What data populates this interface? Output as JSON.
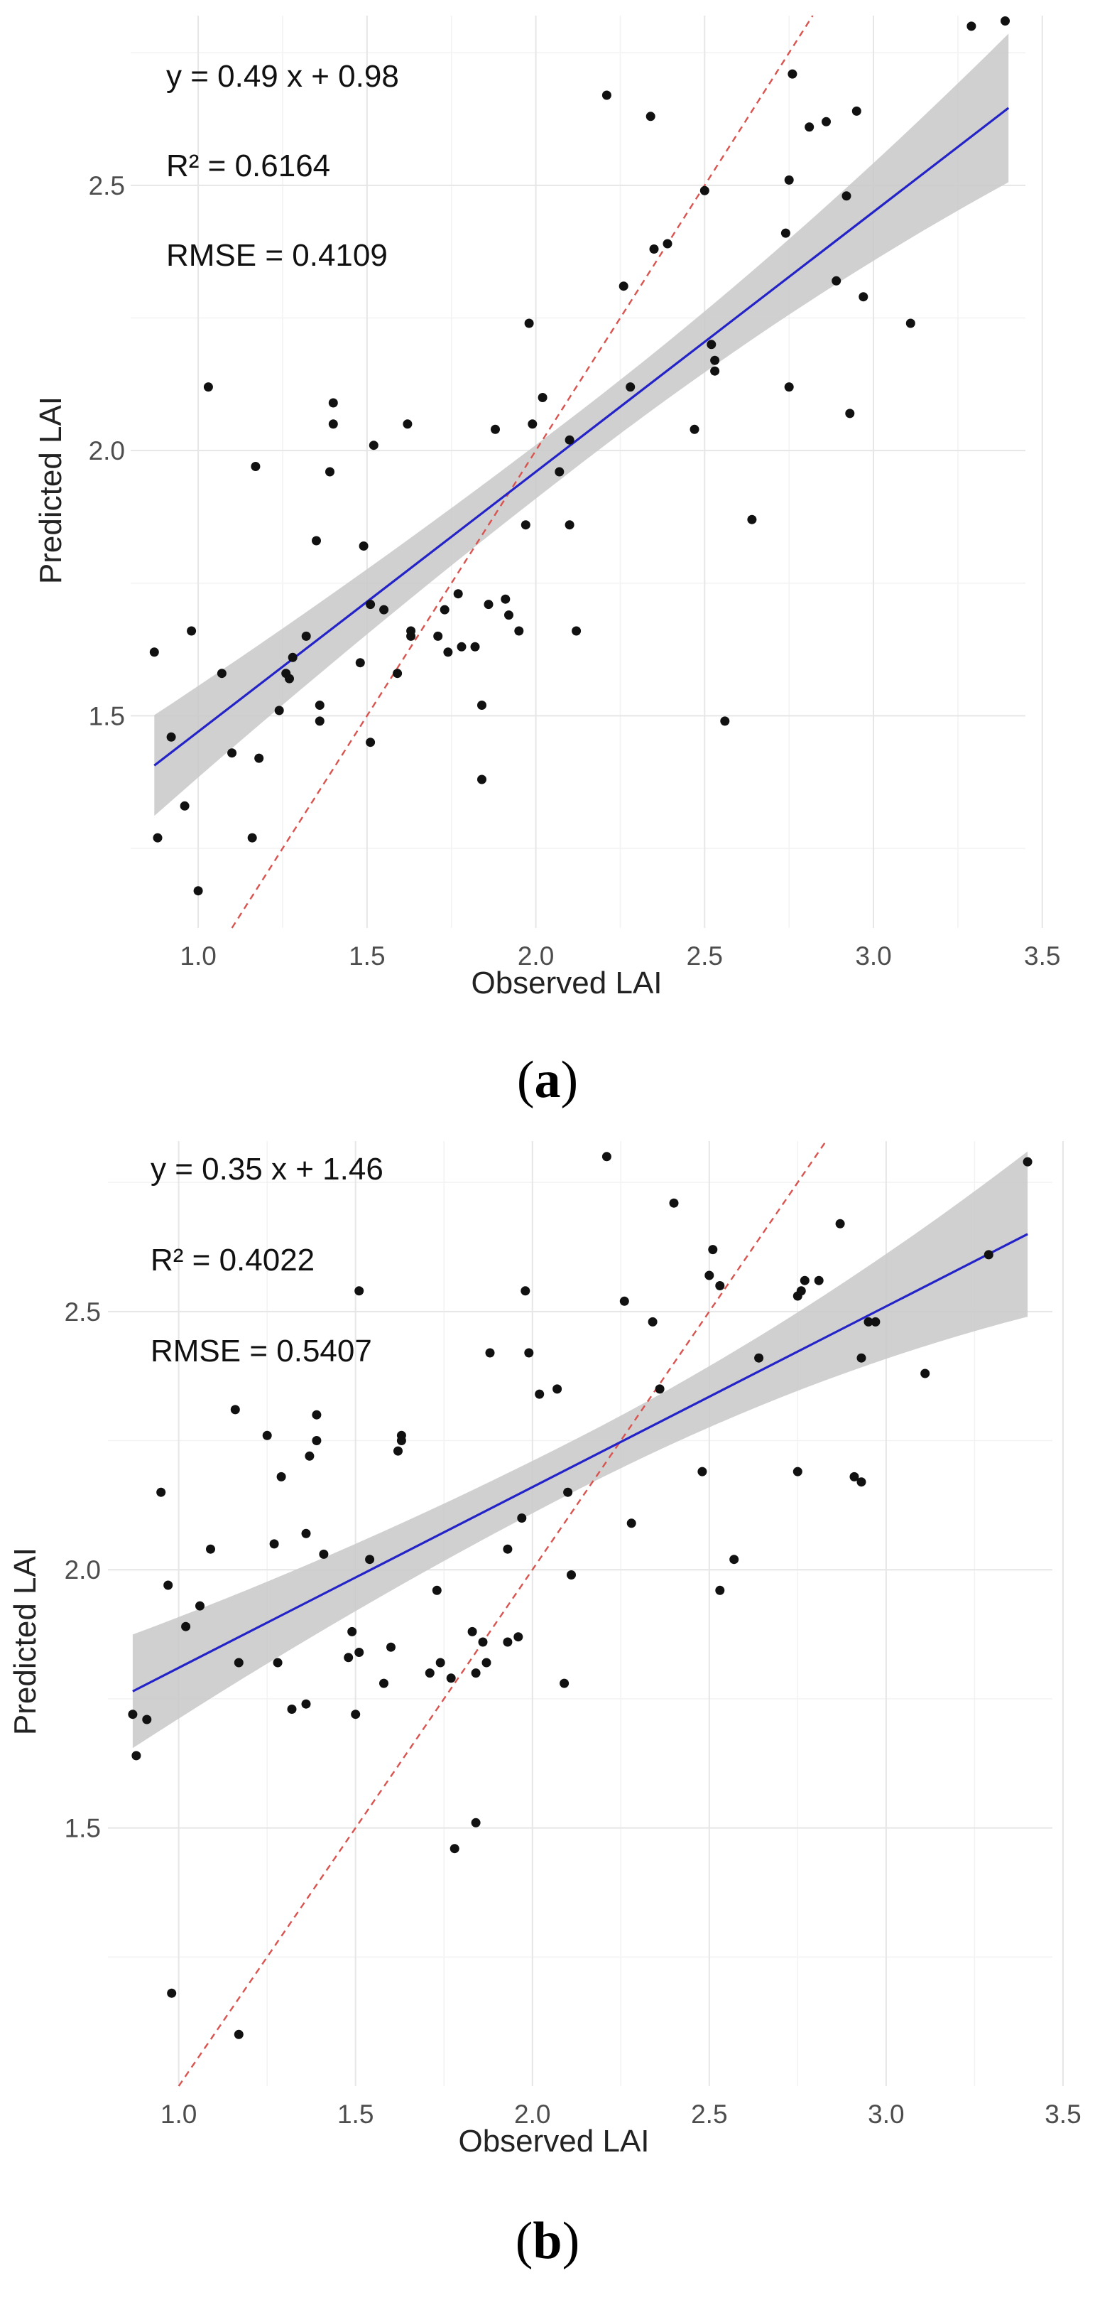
{
  "chart_data": [
    {
      "panel_label": "a",
      "type": "scatter",
      "xlabel": "Observed LAI",
      "ylabel": "Predicted LAI",
      "xlim": [
        0.8,
        3.45
      ],
      "ylim": [
        1.1,
        2.82
      ],
      "x_ticks": [
        "1.0",
        "1.5",
        "2.0",
        "2.5",
        "3.0",
        "3.5"
      ],
      "y_ticks": [
        "1.5",
        "2.0",
        "2.5"
      ],
      "annotations": {
        "equation": "y = 0.49 x + 0.98",
        "r2": "R² = 0.6164",
        "rmse": "RMSE = 0.4109"
      },
      "fit": {
        "slope": 0.49,
        "intercept": 0.98,
        "x_range": [
          0.87,
          3.4
        ],
        "band_halfwidth": [
          0.095,
          0.05,
          0.14
        ]
      },
      "identity_line": true,
      "colors": {
        "points": "#111111",
        "fit": "#2323c8",
        "identity": "#d9534f",
        "band": "#c8c8c8"
      },
      "points": [
        [
          0.87,
          1.62
        ],
        [
          0.88,
          1.27
        ],
        [
          0.92,
          1.46
        ],
        [
          0.96,
          1.33
        ],
        [
          0.98,
          1.66
        ],
        [
          1.0,
          1.17
        ],
        [
          1.03,
          2.12
        ],
        [
          1.07,
          1.58
        ],
        [
          1.1,
          1.43
        ],
        [
          1.16,
          1.27
        ],
        [
          1.17,
          1.97
        ],
        [
          1.18,
          1.42
        ],
        [
          1.24,
          1.51
        ],
        [
          1.26,
          1.58
        ],
        [
          1.27,
          1.57
        ],
        [
          1.28,
          1.61
        ],
        [
          1.32,
          1.65
        ],
        [
          1.35,
          1.83
        ],
        [
          1.36,
          1.52
        ],
        [
          1.36,
          1.49
        ],
        [
          1.39,
          1.96
        ],
        [
          1.4,
          2.05
        ],
        [
          1.4,
          2.09
        ],
        [
          1.48,
          1.6
        ],
        [
          1.49,
          1.82
        ],
        [
          1.51,
          1.71
        ],
        [
          1.51,
          1.45
        ],
        [
          1.52,
          2.01
        ],
        [
          1.55,
          1.7
        ],
        [
          1.59,
          1.58
        ],
        [
          1.62,
          2.05
        ],
        [
          1.63,
          1.66
        ],
        [
          1.63,
          1.65
        ],
        [
          1.71,
          1.65
        ],
        [
          1.73,
          1.7
        ],
        [
          1.74,
          1.62
        ],
        [
          1.77,
          1.73
        ],
        [
          1.78,
          1.63
        ],
        [
          1.82,
          1.63
        ],
        [
          1.84,
          1.52
        ],
        [
          1.84,
          1.38
        ],
        [
          1.86,
          1.71
        ],
        [
          1.88,
          2.04
        ],
        [
          1.91,
          1.72
        ],
        [
          1.92,
          1.69
        ],
        [
          1.95,
          1.66
        ],
        [
          1.97,
          1.86
        ],
        [
          1.98,
          2.24
        ],
        [
          1.99,
          2.05
        ],
        [
          2.02,
          2.1
        ],
        [
          2.07,
          1.96
        ],
        [
          2.1,
          1.86
        ],
        [
          2.1,
          2.02
        ],
        [
          2.12,
          1.66
        ],
        [
          2.21,
          2.67
        ],
        [
          2.26,
          2.31
        ],
        [
          2.28,
          2.12
        ],
        [
          2.34,
          2.63
        ],
        [
          2.35,
          2.38
        ],
        [
          2.39,
          2.39
        ],
        [
          2.47,
          2.04
        ],
        [
          2.5,
          2.49
        ],
        [
          2.52,
          2.2
        ],
        [
          2.53,
          2.15
        ],
        [
          2.53,
          2.17
        ],
        [
          2.56,
          1.49
        ],
        [
          2.64,
          1.87
        ],
        [
          2.74,
          2.41
        ],
        [
          2.75,
          2.12
        ],
        [
          2.75,
          2.51
        ],
        [
          2.76,
          2.71
        ],
        [
          2.81,
          2.61
        ],
        [
          2.86,
          2.62
        ],
        [
          2.89,
          2.32
        ],
        [
          2.92,
          2.48
        ],
        [
          2.93,
          2.07
        ],
        [
          2.95,
          2.64
        ],
        [
          2.97,
          2.29
        ],
        [
          3.11,
          2.24
        ],
        [
          3.29,
          2.8
        ],
        [
          3.39,
          2.81
        ]
      ]
    },
    {
      "panel_label": "b",
      "type": "scatter",
      "xlabel": "Observed LAI",
      "ylabel": "Predicted LAI",
      "xlim": [
        0.8,
        3.47
      ],
      "ylim": [
        1.0,
        2.83
      ],
      "x_ticks": [
        "1.0",
        "1.5",
        "2.0",
        "2.5",
        "3.0",
        "3.5"
      ],
      "y_ticks": [
        "1.5",
        "2.0",
        "2.5"
      ],
      "annotations": {
        "equation": "y = 0.35 x + 1.46",
        "r2": "R² = 0.4022",
        "rmse": "RMSE = 0.5407"
      },
      "fit": {
        "slope": 0.35,
        "intercept": 1.46,
        "x_range": [
          0.87,
          3.4
        ],
        "band_halfwidth": [
          0.11,
          0.05,
          0.16
        ]
      },
      "identity_line": true,
      "colors": {
        "points": "#111111",
        "fit": "#2323c8",
        "identity": "#d9534f",
        "band": "#c8c8c8"
      },
      "points": [
        [
          0.87,
          1.72
        ],
        [
          0.88,
          1.64
        ],
        [
          0.91,
          1.71
        ],
        [
          0.95,
          2.15
        ],
        [
          0.97,
          1.97
        ],
        [
          0.98,
          1.18
        ],
        [
          1.02,
          1.89
        ],
        [
          1.06,
          1.93
        ],
        [
          1.09,
          2.04
        ],
        [
          1.16,
          2.31
        ],
        [
          1.17,
          1.82
        ],
        [
          1.17,
          1.1
        ],
        [
          1.25,
          2.26
        ],
        [
          1.27,
          2.05
        ],
        [
          1.28,
          1.82
        ],
        [
          1.29,
          2.18
        ],
        [
          1.32,
          1.73
        ],
        [
          1.36,
          1.74
        ],
        [
          1.36,
          2.07
        ],
        [
          1.37,
          2.22
        ],
        [
          1.39,
          2.25
        ],
        [
          1.39,
          2.3
        ],
        [
          1.41,
          2.03
        ],
        [
          1.48,
          1.83
        ],
        [
          1.49,
          1.88
        ],
        [
          1.5,
          1.72
        ],
        [
          1.51,
          1.84
        ],
        [
          1.51,
          2.54
        ],
        [
          1.54,
          2.02
        ],
        [
          1.58,
          1.78
        ],
        [
          1.6,
          1.85
        ],
        [
          1.62,
          2.23
        ],
        [
          1.63,
          2.25
        ],
        [
          1.63,
          2.26
        ],
        [
          1.71,
          1.8
        ],
        [
          1.73,
          1.96
        ],
        [
          1.74,
          1.82
        ],
        [
          1.77,
          1.79
        ],
        [
          1.78,
          1.46
        ],
        [
          1.83,
          1.88
        ],
        [
          1.84,
          1.51
        ],
        [
          1.84,
          1.8
        ],
        [
          1.86,
          1.86
        ],
        [
          1.87,
          1.82
        ],
        [
          1.88,
          2.42
        ],
        [
          1.93,
          2.04
        ],
        [
          1.93,
          1.86
        ],
        [
          1.96,
          1.87
        ],
        [
          1.97,
          2.1
        ],
        [
          1.98,
          2.54
        ],
        [
          1.99,
          2.42
        ],
        [
          2.02,
          2.34
        ],
        [
          2.07,
          2.35
        ],
        [
          2.09,
          1.78
        ],
        [
          2.1,
          2.15
        ],
        [
          2.11,
          1.99
        ],
        [
          2.21,
          2.8
        ],
        [
          2.26,
          2.52
        ],
        [
          2.28,
          2.09
        ],
        [
          2.34,
          2.48
        ],
        [
          2.36,
          2.35
        ],
        [
          2.4,
          2.71
        ],
        [
          2.48,
          2.19
        ],
        [
          2.5,
          2.57
        ],
        [
          2.51,
          2.62
        ],
        [
          2.53,
          2.55
        ],
        [
          2.53,
          1.96
        ],
        [
          2.57,
          2.02
        ],
        [
          2.64,
          2.41
        ],
        [
          2.75,
          2.53
        ],
        [
          2.75,
          2.19
        ],
        [
          2.76,
          2.54
        ],
        [
          2.77,
          2.56
        ],
        [
          2.81,
          2.56
        ],
        [
          2.87,
          2.67
        ],
        [
          2.91,
          2.18
        ],
        [
          2.93,
          2.17
        ],
        [
          2.93,
          2.41
        ],
        [
          2.95,
          2.48
        ],
        [
          2.97,
          2.48
        ],
        [
          3.11,
          2.38
        ],
        [
          3.29,
          2.61
        ],
        [
          3.4,
          2.79
        ]
      ]
    }
  ]
}
